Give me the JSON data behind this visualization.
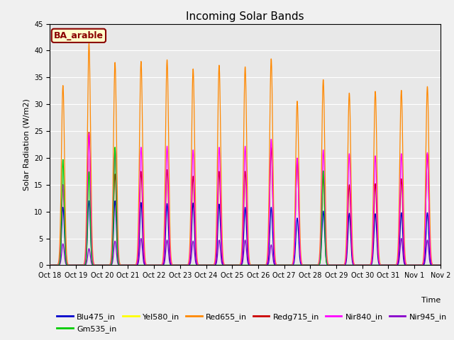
{
  "title": "Incoming Solar Bands",
  "xlabel": "Time",
  "ylabel": "Solar Radiation (W/m2)",
  "annotation": "BA_arable",
  "legend_labels": [
    "Blu475_in",
    "Gm535_in",
    "Yel580_in",
    "Red655_in",
    "Redg715_in",
    "Nir840_in",
    "Nir945_in"
  ],
  "legend_colors": [
    "#0000cc",
    "#00cc00",
    "#ffff00",
    "#ff8800",
    "#cc0000",
    "#ff00ff",
    "#8800cc"
  ],
  "ylim": [
    0,
    45
  ],
  "yticks": [
    0,
    5,
    10,
    15,
    20,
    25,
    30,
    35,
    40,
    45
  ],
  "background_color": "#f0f0f0",
  "plot_bg": "#e8e8e8",
  "tick_labels": [
    "Oct 18",
    "Oct 19",
    "Oct 20",
    "Oct 21",
    "Oct 22",
    "Oct 23",
    "Oct 24",
    "Oct 25",
    "Oct 26",
    "Oct 27",
    "Oct 28",
    "Oct 29",
    "Oct 30",
    "Oct 31",
    "Nov 1",
    "Nov 2"
  ],
  "num_days": 16,
  "peak_orange": [
    33.5,
    41.3,
    37.8,
    38.0,
    38.3,
    36.6,
    37.3,
    37.0,
    38.5,
    30.6,
    34.6,
    32.1,
    32.4,
    32.6,
    33.3,
    0
  ],
  "peak_red": [
    15.0,
    24.8,
    17.0,
    17.5,
    17.8,
    16.6,
    17.5,
    17.5,
    22.0,
    19.9,
    16.4,
    15.0,
    15.2,
    16.1,
    20.8,
    0
  ],
  "peak_magenta": [
    15.0,
    24.5,
    21.9,
    22.0,
    22.2,
    21.5,
    22.0,
    22.2,
    23.5,
    20.0,
    21.5,
    20.8,
    20.4,
    20.8,
    21.0,
    0
  ],
  "peak_blue": [
    10.8,
    12.0,
    12.0,
    11.7,
    11.5,
    11.6,
    11.4,
    10.8,
    10.8,
    8.8,
    10.1,
    9.7,
    9.6,
    9.8,
    9.8,
    0
  ],
  "peak_green": [
    19.7,
    17.4,
    22.0,
    0,
    0,
    0,
    0,
    0,
    0,
    0,
    17.6,
    0,
    0,
    0,
    0,
    0
  ],
  "peak_purple": [
    4.0,
    3.1,
    4.5,
    5.0,
    4.7,
    4.5,
    4.7,
    4.7,
    3.8,
    0,
    0,
    0,
    0,
    5.0,
    4.7,
    0
  ]
}
